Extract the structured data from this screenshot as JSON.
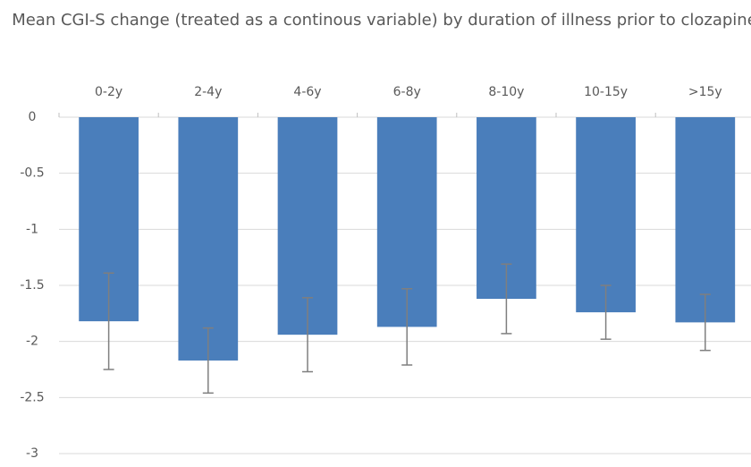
{
  "chart_data": {
    "type": "bar",
    "title": "Mean CGI-S change (treated as a continous variable) by duration of illness prior to clozapine",
    "categories": [
      "0-2y",
      "2-4y",
      "4-6y",
      "6-8y",
      "8-10y",
      "10-15y",
      ">15y"
    ],
    "values": [
      -1.82,
      -2.17,
      -1.94,
      -1.87,
      -1.62,
      -1.74,
      -1.83
    ],
    "errors": [
      0.43,
      0.29,
      0.33,
      0.34,
      0.31,
      0.24,
      0.25
    ],
    "color": "#4a7ebb",
    "error_color": "#7f7f7f",
    "ylim": [
      -3,
      0
    ],
    "yticks": [
      0,
      -0.5,
      -1,
      -1.5,
      -2,
      -2.5,
      -3
    ],
    "grid": true
  }
}
